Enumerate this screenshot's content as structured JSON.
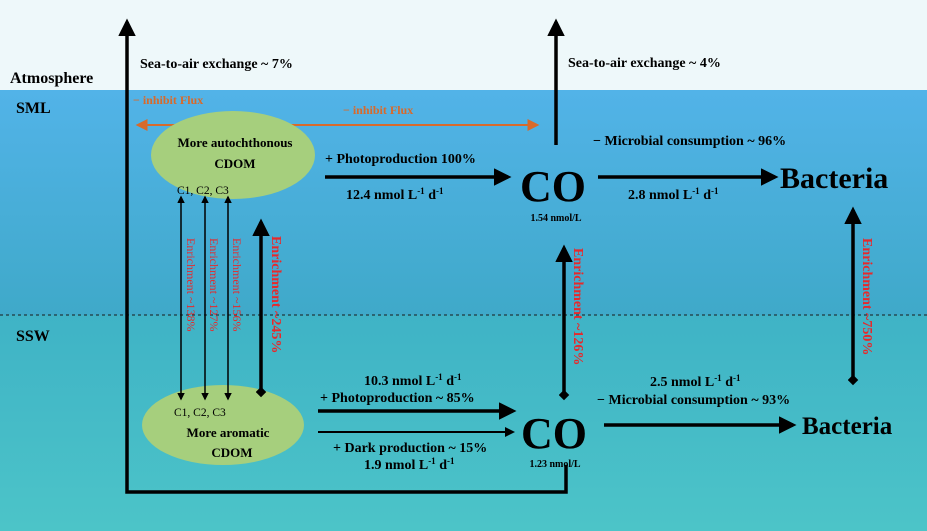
{
  "zones": {
    "atmosphere": "Atmosphere",
    "sml": "SML",
    "ssw": "SSW"
  },
  "colors": {
    "atmosphere_bg": "#eef8fa",
    "sml_top": "#52b3e8",
    "sml_bottom": "#3fa9c9",
    "ssw_top": "#3fb3c6",
    "ssw_bottom": "#4cc4c8",
    "blob": "#a6cf7d",
    "orange": "#d86a2b",
    "red": "#e8282a",
    "black": "#000000"
  },
  "labels": {
    "sea_air_left": "Sea-to-air exchange ~ 7%",
    "sea_air_right": "Sea-to-air exchange ~ 4%",
    "inhibit_flux_left": "− inhibit Flux",
    "inhibit_flux_mid": "− inhibit Flux",
    "microbial_sml": "− Microbial consumption ~ 96%",
    "microbial_ssw": "− Microbial consumption ~ 93%",
    "photoproduction_sml": "+ Photoproduction 100%",
    "photo_rate_sml_val": "12.4 nmol L",
    "photoproduction_ssw": "+ Photoproduction ~ 85%",
    "photo_rate_ssw_val": "10.3 nmol L",
    "dark_production": "+ Dark production ~ 15%",
    "dark_rate_val": "1.9 nmol L",
    "consumption_rate_sml_val": "2.8 nmol L",
    "consumption_rate_ssw_val": "2.5 nmol L",
    "sup_l": "-1",
    "unit_d": " d",
    "sup_d": "-1",
    "co_sml": "CO",
    "co_sml_conc": "1.54 nmol/L",
    "co_ssw": "CO",
    "co_ssw_conc": "1.23 nmol/L",
    "bacteria_sml": "Bacteria",
    "bacteria_ssw": "Bacteria",
    "cdom_sml_line1": "More autochthonous",
    "cdom_sml_line2": "CDOM",
    "cdom_ssw_line1": "More aromatic",
    "cdom_ssw_line2": "CDOM",
    "components_top": "C1, C2, C3",
    "components_bottom": "C1, C2, C3",
    "enrich_c1": "Enrichment ~138%",
    "enrich_c2": "Enrichment ~127%",
    "enrich_c3": "Enrichment ~156%",
    "enrich_cdom": "Enrichment ~245%",
    "enrich_co": "Enrichment ~126%",
    "enrich_bacteria": "Enrichment ~750%"
  }
}
